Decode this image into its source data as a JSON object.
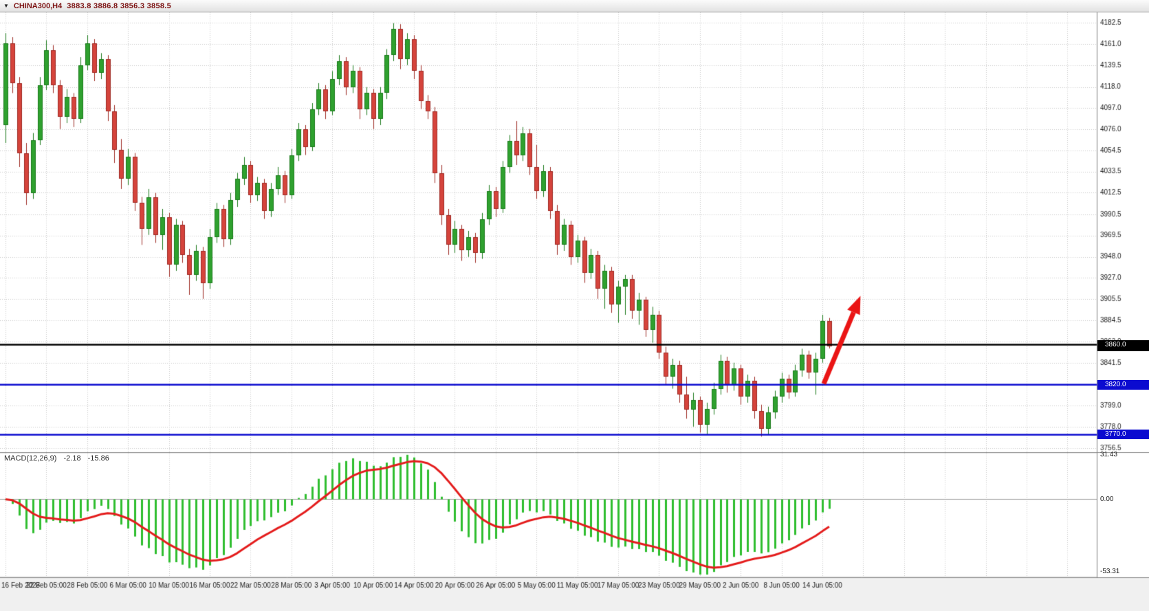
{
  "window": {
    "title_symbol": "CHINA300,H4",
    "quote_ohlc": "3883.8 3886.8 3856.3 3858.5"
  },
  "chart_data": {
    "type": "candlestick",
    "symbol": "CHINA300",
    "timeframe": "H4",
    "bars_per_time_tick": 6,
    "price_axis_ticks": [
      "4182.5",
      "4161.0",
      "4139.5",
      "4118.0",
      "4097.0",
      "4076.0",
      "4054.5",
      "4033.5",
      "4012.5",
      "3990.5",
      "3969.5",
      "3948.0",
      "3927.0",
      "3905.5",
      "3884.5",
      "3863.0",
      "3841.5",
      "3820.0",
      "3799.0",
      "3778.0",
      "3756.5"
    ],
    "time_axis_ticks": [
      "16 Feb 2023",
      "22 Feb 05:00",
      "28 Feb 05:00",
      "6 Mar 05:00",
      "10 Mar 05:00",
      "16 Mar 05:00",
      "22 Mar 05:00",
      "28 Mar 05:00",
      "3 Apr 05:00",
      "10 Apr 05:00",
      "14 Apr 05:00",
      "20 Apr 05:00",
      "26 Apr 05:00",
      "5 May 05:00",
      "11 May 05:00",
      "17 May 05:00",
      "23 May 05:00",
      "29 May 05:00",
      "2 Jun 05:00",
      "8 Jun 05:00",
      "14 Jun 05:00"
    ],
    "candles": [
      [
        4080,
        4172,
        4062,
        4162
      ],
      [
        4162,
        4168,
        4112,
        4122
      ],
      [
        4122,
        4128,
        4038,
        4052
      ],
      [
        4052,
        4062,
        4000,
        4012
      ],
      [
        4012,
        4072,
        4006,
        4065
      ],
      [
        4065,
        4128,
        4060,
        4120
      ],
      [
        4120,
        4165,
        4115,
        4155
      ],
      [
        4155,
        4160,
        4112,
        4120
      ],
      [
        4120,
        4125,
        4076,
        4088
      ],
      [
        4088,
        4116,
        4082,
        4108
      ],
      [
        4108,
        4112,
        4078,
        4086
      ],
      [
        4086,
        4148,
        4082,
        4140
      ],
      [
        4140,
        4170,
        4135,
        4162
      ],
      [
        4162,
        4166,
        4124,
        4132
      ],
      [
        4132,
        4152,
        4126,
        4146
      ],
      [
        4146,
        4150,
        4084,
        4094
      ],
      [
        4094,
        4100,
        4042,
        4055
      ],
      [
        4055,
        4066,
        4016,
        4026
      ],
      [
        4026,
        4056,
        4020,
        4048
      ],
      [
        4048,
        4052,
        3994,
        4002
      ],
      [
        4002,
        4008,
        3960,
        3976
      ],
      [
        3976,
        4016,
        3970,
        4008
      ],
      [
        4008,
        4012,
        3962,
        3970
      ],
      [
        3970,
        3996,
        3955,
        3988
      ],
      [
        3988,
        3992,
        3928,
        3940
      ],
      [
        3940,
        3986,
        3934,
        3980
      ],
      [
        3980,
        3984,
        3942,
        3950
      ],
      [
        3950,
        3956,
        3910,
        3930
      ],
      [
        3930,
        3960,
        3924,
        3954
      ],
      [
        3954,
        3958,
        3906,
        3922
      ],
      [
        3922,
        3976,
        3916,
        3968
      ],
      [
        3968,
        4002,
        3962,
        3996
      ],
      [
        3996,
        4000,
        3958,
        3966
      ],
      [
        3966,
        4012,
        3960,
        4005
      ],
      [
        4005,
        4032,
        3998,
        4026
      ],
      [
        4026,
        4048,
        4020,
        4040
      ],
      [
        4040,
        4044,
        4002,
        4010
      ],
      [
        4010,
        4028,
        4004,
        4022
      ],
      [
        4022,
        4026,
        3986,
        3994
      ],
      [
        3994,
        4022,
        3988,
        4016
      ],
      [
        4016,
        4038,
        4010,
        4030
      ],
      [
        4030,
        4034,
        4002,
        4010
      ],
      [
        4010,
        4056,
        4006,
        4050
      ],
      [
        4050,
        4082,
        4044,
        4076
      ],
      [
        4076,
        4080,
        4050,
        4058
      ],
      [
        4058,
        4102,
        4054,
        4096
      ],
      [
        4096,
        4122,
        4090,
        4116
      ],
      [
        4116,
        4120,
        4086,
        4094
      ],
      [
        4094,
        4134,
        4090,
        4126
      ],
      [
        4126,
        4150,
        4120,
        4144
      ],
      [
        4144,
        4148,
        4110,
        4118
      ],
      [
        4118,
        4140,
        4112,
        4134
      ],
      [
        4134,
        4138,
        4086,
        4096
      ],
      [
        4096,
        4118,
        4090,
        4112
      ],
      [
        4112,
        4116,
        4076,
        4086
      ],
      [
        4086,
        4118,
        4080,
        4112
      ],
      [
        4112,
        4156,
        4106,
        4150
      ],
      [
        4150,
        4182,
        4144,
        4176
      ],
      [
        4176,
        4181,
        4136,
        4146
      ],
      [
        4146,
        4172,
        4140,
        4166
      ],
      [
        4166,
        4170,
        4126,
        4134
      ],
      [
        4134,
        4140,
        4096,
        4104
      ],
      [
        4104,
        4110,
        4086,
        4094
      ],
      [
        4094,
        4098,
        4022,
        4032
      ],
      [
        4032,
        4040,
        3980,
        3990
      ],
      [
        3990,
        3996,
        3950,
        3960
      ],
      [
        3960,
        3984,
        3952,
        3976
      ],
      [
        3976,
        3980,
        3944,
        3955
      ],
      [
        3955,
        3974,
        3948,
        3968
      ],
      [
        3968,
        3972,
        3942,
        3952
      ],
      [
        3952,
        3992,
        3946,
        3986
      ],
      [
        3986,
        4020,
        3980,
        4014
      ],
      [
        4014,
        4018,
        3988,
        3996
      ],
      [
        3996,
        4044,
        3992,
        4038
      ],
      [
        4038,
        4070,
        4032,
        4064
      ],
      [
        4064,
        4084,
        4040,
        4050
      ],
      [
        4050,
        4078,
        4044,
        4072
      ],
      [
        4072,
        4076,
        4030,
        4038
      ],
      [
        4038,
        4060,
        4006,
        4014
      ],
      [
        4014,
        4040,
        4008,
        4034
      ],
      [
        4034,
        4038,
        3986,
        3994
      ],
      [
        3994,
        4000,
        3950,
        3960
      ],
      [
        3960,
        3986,
        3954,
        3980
      ],
      [
        3980,
        3984,
        3940,
        3948
      ],
      [
        3948,
        3970,
        3942,
        3964
      ],
      [
        3964,
        3968,
        3922,
        3932
      ],
      [
        3932,
        3956,
        3926,
        3950
      ],
      [
        3950,
        3954,
        3906,
        3916
      ],
      [
        3916,
        3940,
        3896,
        3934
      ],
      [
        3934,
        3938,
        3892,
        3900
      ],
      [
        3900,
        3924,
        3882,
        3918
      ],
      [
        3918,
        3930,
        3890,
        3926
      ],
      [
        3926,
        3930,
        3886,
        3894
      ],
      [
        3894,
        3912,
        3880,
        3905
      ],
      [
        3905,
        3908,
        3868,
        3875
      ],
      [
        3875,
        3898,
        3862,
        3890
      ],
      [
        3890,
        3894,
        3846,
        3852
      ],
      [
        3852,
        3858,
        3820,
        3828
      ],
      [
        3828,
        3846,
        3816,
        3840
      ],
      [
        3840,
        3844,
        3802,
        3810
      ],
      [
        3810,
        3828,
        3786,
        3795
      ],
      [
        3795,
        3812,
        3778,
        3805
      ],
      [
        3805,
        3808,
        3772,
        3780
      ],
      [
        3780,
        3802,
        3770,
        3796
      ],
      [
        3796,
        3822,
        3790,
        3816
      ],
      [
        3816,
        3850,
        3810,
        3844
      ],
      [
        3844,
        3848,
        3812,
        3820
      ],
      [
        3820,
        3842,
        3814,
        3836
      ],
      [
        3836,
        3840,
        3800,
        3808
      ],
      [
        3808,
        3830,
        3802,
        3824
      ],
      [
        3824,
        3828,
        3786,
        3794
      ],
      [
        3794,
        3800,
        3768,
        3776
      ],
      [
        3776,
        3798,
        3770,
        3792
      ],
      [
        3792,
        3814,
        3786,
        3808
      ],
      [
        3808,
        3832,
        3802,
        3826
      ],
      [
        3826,
        3830,
        3806,
        3812
      ],
      [
        3812,
        3840,
        3808,
        3834
      ],
      [
        3834,
        3856,
        3828,
        3850
      ],
      [
        3850,
        3854,
        3826,
        3832
      ],
      [
        3832,
        3852,
        3810,
        3846
      ],
      [
        3846,
        3890,
        3842,
        3884
      ],
      [
        3883.8,
        3886.8,
        3856.3,
        3858.5
      ]
    ],
    "levels": [
      {
        "price": 3860.0,
        "label": "3860.0",
        "color": "#000000"
      },
      {
        "price": 3820.0,
        "label": "3820.0",
        "color": "#0b0bd0"
      },
      {
        "price": 3770.0,
        "label": "3770.0",
        "color": "#0b0bd0"
      }
    ],
    "bid": {
      "price": 3858.5,
      "label": "3858.5",
      "color": "#000000"
    },
    "macd": {
      "label": "MACD(12,26,9)",
      "value_main": "-2.18",
      "value_signal": "-15.86",
      "params": [
        12,
        26,
        9
      ],
      "scale_top": "31.43",
      "scale_zero": "0.00",
      "scale_bottom": "-53.31",
      "range": [
        -53.31,
        31.43
      ],
      "histogram_color": "#2fbe2f",
      "signal_color": "#e41c1c"
    },
    "annotations": [
      {
        "type": "arrow-up",
        "color": "#ea1515",
        "from": {
          "bar": 120.2,
          "price": 3821
        },
        "to": {
          "bar": 125.6,
          "price": 3909
        }
      }
    ],
    "colors": {
      "bull": "#2fa12f",
      "bull_border": "#1c7a1c",
      "bear": "#d5443c",
      "bear_border": "#9e2b24",
      "grid": "#c8c8c8",
      "bg": "#ffffff",
      "axis_text": "#1a1a1a",
      "separator": "#808080"
    }
  }
}
